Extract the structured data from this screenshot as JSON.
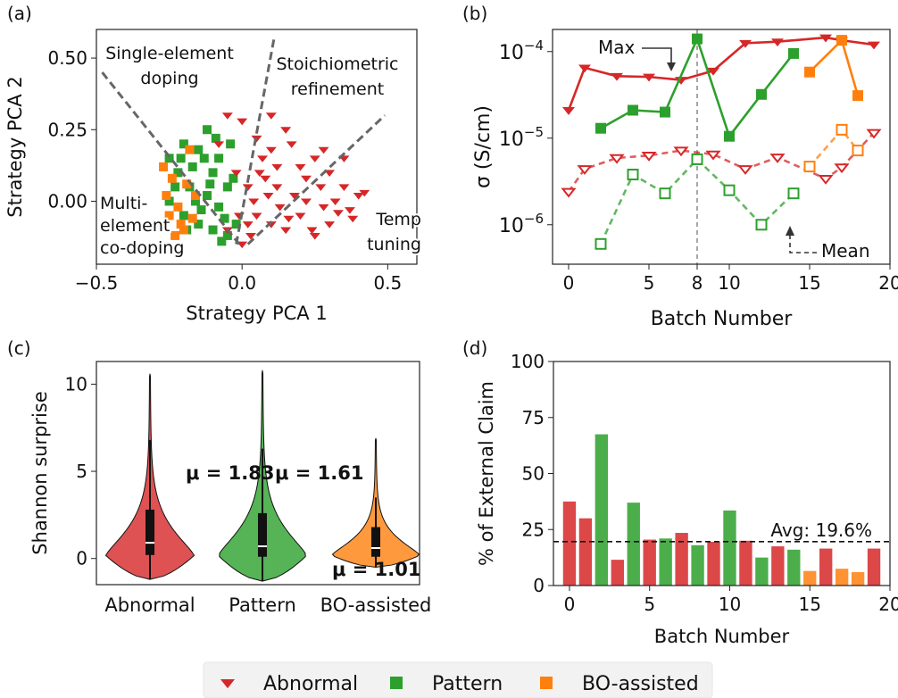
{
  "colors": {
    "abnormal": "#d62728",
    "pattern": "#2ca02c",
    "bo": "#ff7f0e"
  },
  "legend": {
    "position": "bottom-center",
    "items": [
      "Abnormal",
      "Pattern",
      "BO-assisted"
    ]
  },
  "chart_data": [
    {
      "panel": "(a)",
      "type": "scatter",
      "xlabel": "Strategy PCA 1",
      "ylabel": "Strategy PCA 2",
      "xlim": [
        -0.5,
        0.6
      ],
      "ylim": [
        -0.22,
        0.6
      ],
      "xticks": [
        "−0.5",
        "0.0",
        "0.5"
      ],
      "yticks": [
        "0.00",
        "0.25",
        "0.50"
      ],
      "region_labels": [
        {
          "lines": [
            "Single-element",
            "doping"
          ]
        },
        {
          "lines": [
            "Stoichiometric",
            "refinement"
          ]
        },
        {
          "lines": [
            "Multi-",
            "element",
            "co-doping"
          ]
        },
        {
          "lines": [
            "Temp",
            "tuning"
          ]
        }
      ],
      "dashed_lines": [
        [
          [
            -0.48,
            0.45
          ],
          [
            -0.01,
            -0.15
          ]
        ],
        [
          [
            -0.02,
            -0.15
          ],
          [
            0.11,
            0.57
          ]
        ],
        [
          [
            0.02,
            -0.15
          ],
          [
            0.49,
            0.3
          ]
        ]
      ],
      "series": [
        {
          "name": "Abnormal",
          "marker": "triangle-down",
          "points": [
            [
              -0.05,
              0.3
            ],
            [
              0.0,
              0.28
            ],
            [
              0.05,
              0.22
            ],
            [
              0.1,
              0.18
            ],
            [
              0.15,
              0.25
            ],
            [
              0.2,
              0.12
            ],
            [
              0.25,
              0.15
            ],
            [
              0.3,
              0.1
            ],
            [
              0.35,
              0.05
            ],
            [
              0.4,
              0.02
            ],
            [
              0.08,
              0.08
            ],
            [
              0.12,
              0.05
            ],
            [
              0.18,
              0.02
            ],
            [
              0.22,
              0.0
            ],
            [
              0.28,
              -0.02
            ],
            [
              0.33,
              -0.04
            ],
            [
              0.38,
              -0.06
            ],
            [
              0.42,
              0.03
            ],
            [
              0.02,
              0.05
            ],
            [
              -0.02,
              0.1
            ],
            [
              0.05,
              -0.05
            ],
            [
              0.1,
              -0.08
            ],
            [
              0.15,
              -0.1
            ],
            [
              0.2,
              -0.05
            ],
            [
              0.25,
              -0.12
            ],
            [
              0.3,
              -0.08
            ],
            [
              0.0,
              -0.15
            ],
            [
              0.03,
              -0.12
            ],
            [
              -0.05,
              -0.1
            ],
            [
              0.07,
              0.15
            ],
            [
              0.12,
              0.12
            ],
            [
              0.17,
              0.2
            ],
            [
              0.22,
              0.08
            ],
            [
              0.27,
              0.05
            ],
            [
              0.32,
              0.0
            ],
            [
              0.37,
              -0.03
            ],
            [
              0.13,
              -0.02
            ],
            [
              0.09,
              0.02
            ],
            [
              0.04,
              0.0
            ],
            [
              -0.01,
              -0.05
            ],
            [
              0.06,
              0.1
            ],
            [
              0.16,
              -0.06
            ],
            [
              0.24,
              -0.1
            ],
            [
              0.28,
              0.18
            ],
            [
              0.35,
              0.15
            ],
            [
              -0.08,
              0.2
            ],
            [
              0.1,
              0.3
            ],
            [
              0.02,
              -0.08
            ]
          ]
        },
        {
          "name": "Pattern",
          "marker": "square",
          "points": [
            [
              -0.25,
              0.15
            ],
            [
              -0.2,
              0.2
            ],
            [
              -0.15,
              0.18
            ],
            [
              -0.1,
              0.1
            ],
            [
              -0.05,
              0.05
            ],
            [
              -0.18,
              0.05
            ],
            [
              -0.22,
              0.1
            ],
            [
              -0.12,
              0.02
            ],
            [
              -0.08,
              -0.02
            ],
            [
              -0.2,
              -0.05
            ],
            [
              -0.15,
              -0.08
            ],
            [
              -0.1,
              -0.1
            ],
            [
              -0.05,
              -0.12
            ],
            [
              -0.25,
              0.0
            ],
            [
              -0.12,
              0.25
            ],
            [
              -0.08,
              0.15
            ],
            [
              -0.03,
              0.08
            ],
            [
              -0.17,
              0.12
            ],
            [
              -0.14,
              -0.03
            ],
            [
              -0.06,
              -0.06
            ],
            [
              -0.21,
              0.15
            ],
            [
              -0.09,
              0.22
            ],
            [
              -0.11,
              0.06
            ],
            [
              -0.16,
              0.0
            ],
            [
              -0.02,
              -0.08
            ],
            [
              -0.04,
              0.2
            ],
            [
              -0.23,
              0.05
            ],
            [
              -0.13,
              0.15
            ],
            [
              -0.07,
              -0.14
            ],
            [
              -0.19,
              -0.1
            ]
          ]
        },
        {
          "name": "BO-assisted",
          "marker": "square",
          "points": [
            [
              -0.27,
              0.12
            ],
            [
              -0.24,
              0.08
            ],
            [
              -0.22,
              -0.02
            ],
            [
              -0.2,
              -0.1
            ],
            [
              -0.18,
              0.18
            ],
            [
              -0.25,
              -0.05
            ],
            [
              -0.16,
              0.02
            ],
            [
              -0.21,
              -0.08
            ],
            [
              -0.26,
              0.02
            ],
            [
              -0.19,
              0.06
            ],
            [
              -0.23,
              -0.12
            ],
            [
              -0.17,
              -0.06
            ]
          ]
        }
      ]
    },
    {
      "panel": "(b)",
      "type": "line",
      "xlabel": "Batch Number",
      "ylabel": "σ (S/cm)",
      "yscale": "log",
      "xlim": [
        -1,
        20
      ],
      "ylim": [
        3.5e-07,
        0.00018
      ],
      "xticks": [
        0,
        5,
        8,
        10,
        15,
        20
      ],
      "yticks": [
        "10−6",
        "10−5",
        "10−4"
      ],
      "vline_x": 8,
      "annotations": [
        {
          "text": "Max",
          "x": 8,
          "y": 0.00014
        },
        {
          "text": "Mean",
          "x": 14,
          "y": 2.2e-06
        }
      ],
      "series": [
        {
          "name": "Abnormal max",
          "style": "solid",
          "x": [
            0,
            1,
            3,
            5,
            7,
            9,
            11,
            13,
            16,
            17,
            19
          ],
          "values": [
            2.1e-05,
            6.5e-05,
            5.2e-05,
            5.1e-05,
            4.7e-05,
            6e-05,
            0.000125,
            0.00013,
            0.000145,
            0.000135,
            0.00012
          ]
        },
        {
          "name": "Pattern max",
          "style": "solid",
          "x": [
            2,
            4,
            6,
            8,
            10,
            12,
            14
          ],
          "values": [
            1.3e-05,
            2.1e-05,
            2e-05,
            0.00014,
            1.05e-05,
            3.2e-05,
            9.5e-05
          ]
        },
        {
          "name": "BO max",
          "style": "solid",
          "x": [
            15,
            17,
            18
          ],
          "values": [
            5.8e-05,
            0.000135,
            3.1e-05
          ]
        },
        {
          "name": "Abnormal mean",
          "style": "dashed",
          "x": [
            0,
            1,
            3,
            5,
            7,
            9,
            11,
            13,
            16,
            17,
            19
          ],
          "values": [
            2.4e-06,
            4.4e-06,
            5.9e-06,
            6.3e-06,
            7.2e-06,
            6.5e-06,
            4.4e-06,
            6e-06,
            3.4e-06,
            4.6e-06,
            1.15e-05
          ]
        },
        {
          "name": "Pattern mean",
          "style": "dashed",
          "x": [
            2,
            4,
            6,
            8,
            10,
            12,
            14
          ],
          "values": [
            6e-07,
            3.8e-06,
            2.3e-06,
            5.7e-06,
            2.5e-06,
            1e-06,
            2.3e-06
          ]
        },
        {
          "name": "BO mean",
          "style": "dashed",
          "x": [
            15,
            17,
            18
          ],
          "values": [
            4.7e-06,
            1.25e-05,
            7.2e-06
          ]
        }
      ]
    },
    {
      "panel": "(c)",
      "type": "violin",
      "ylabel": "Shannon surprise",
      "ylim": [
        -1.5,
        11.3
      ],
      "yticks": [
        0,
        5,
        10
      ],
      "categories": [
        "Abnormal",
        "Pattern",
        "BO-assisted"
      ],
      "means": [
        1.83,
        1.61,
        1.01
      ],
      "mean_labels": [
        "μ = 1.83",
        "μ = 1.61",
        "μ = 1.01"
      ],
      "medians": [
        0.9,
        0.7,
        0.6
      ],
      "q1": [
        0.2,
        0.1,
        0.1
      ],
      "q3": [
        2.8,
        2.6,
        1.8
      ],
      "whisker_low": [
        -1.2,
        -1.3,
        -0.5
      ],
      "whisker_high": [
        6.8,
        6.3,
        3.5
      ],
      "min": [
        -1.2,
        -1.3,
        -0.5
      ],
      "max": [
        10.6,
        10.8,
        6.9
      ]
    },
    {
      "panel": "(d)",
      "type": "bar",
      "xlabel": "Batch Number",
      "ylabel": "% of External Claim",
      "xlim": [
        -1,
        20
      ],
      "ylim": [
        0,
        100
      ],
      "xticks": [
        0,
        5,
        10,
        15,
        20
      ],
      "yticks": [
        0,
        25,
        50,
        75,
        100
      ],
      "avg_line": {
        "value": 19.6,
        "label": "Avg: 19.6%"
      },
      "bars": [
        {
          "x": 0,
          "value": 37.5,
          "group": "Abnormal"
        },
        {
          "x": 1,
          "value": 30,
          "group": "Abnormal"
        },
        {
          "x": 2,
          "value": 67.5,
          "group": "Pattern"
        },
        {
          "x": 3,
          "value": 11.5,
          "group": "Abnormal"
        },
        {
          "x": 4,
          "value": 37,
          "group": "Pattern"
        },
        {
          "x": 5,
          "value": 20.5,
          "group": "Abnormal"
        },
        {
          "x": 6,
          "value": 21,
          "group": "Pattern"
        },
        {
          "x": 7,
          "value": 23.5,
          "group": "Abnormal"
        },
        {
          "x": 8,
          "value": 18,
          "group": "Pattern"
        },
        {
          "x": 9,
          "value": 19.5,
          "group": "Abnormal"
        },
        {
          "x": 10,
          "value": 33.5,
          "group": "Pattern"
        },
        {
          "x": 11,
          "value": 20,
          "group": "Abnormal"
        },
        {
          "x": 12,
          "value": 12.5,
          "group": "Pattern"
        },
        {
          "x": 13,
          "value": 17.5,
          "group": "Abnormal"
        },
        {
          "x": 14,
          "value": 16,
          "group": "Pattern"
        },
        {
          "x": 15,
          "value": 6.5,
          "group": "BO-assisted"
        },
        {
          "x": 16,
          "value": 16.5,
          "group": "Abnormal"
        },
        {
          "x": 17,
          "value": 7.5,
          "group": "BO-assisted"
        },
        {
          "x": 18,
          "value": 6,
          "group": "BO-assisted"
        },
        {
          "x": 19,
          "value": 16.5,
          "group": "Abnormal"
        }
      ]
    }
  ]
}
